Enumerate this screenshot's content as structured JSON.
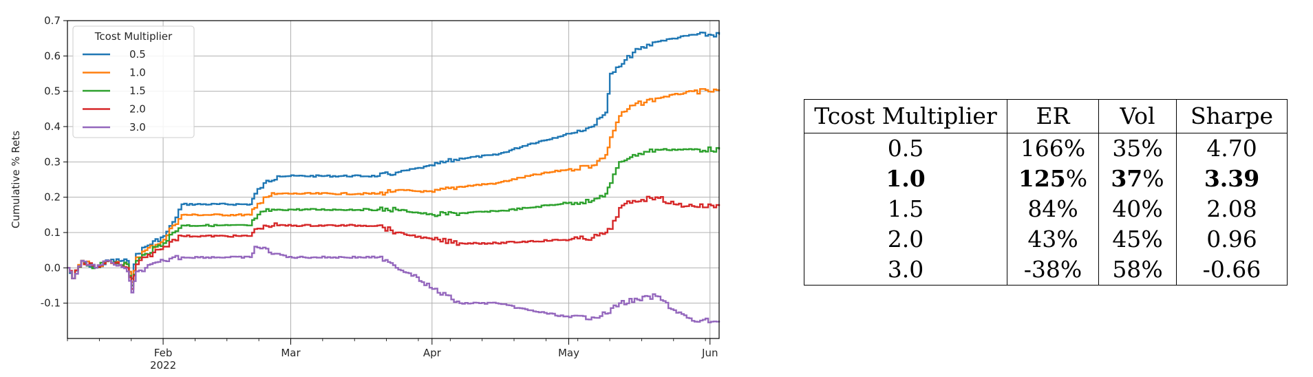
{
  "chart_data": {
    "type": "line",
    "ylabel": "Cumulative % Rets",
    "xlabel": "",
    "x_ticks": [
      {
        "date": "2022-02-01",
        "label": "Feb",
        "sublabel": "2022"
      },
      {
        "date": "2022-03-01",
        "label": "Mar",
        "sublabel": ""
      },
      {
        "date": "2022-04-01",
        "label": "Apr",
        "sublabel": ""
      },
      {
        "date": "2022-05-01",
        "label": "May",
        "sublabel": ""
      },
      {
        "date": "2022-06-01",
        "label": "Jun",
        "sublabel": ""
      }
    ],
    "xlim": [
      "2022-01-11",
      "2022-06-03"
    ],
    "ylim": [
      -0.2,
      0.7
    ],
    "y_ticks": [
      -0.1,
      0.0,
      0.1,
      0.2,
      0.3,
      0.4,
      0.5,
      0.6,
      0.7
    ],
    "grid": true,
    "legend": {
      "title": "Tcost Multiplier",
      "placement": "top-left"
    },
    "series": [
      {
        "name": "0.5",
        "color": "#1f77b4",
        "points": [
          [
            "2022-01-11",
            0.0
          ],
          [
            "2022-01-12",
            -0.03
          ],
          [
            "2022-01-14",
            0.02
          ],
          [
            "2022-01-17",
            0.0
          ],
          [
            "2022-01-20",
            0.02
          ],
          [
            "2022-01-24",
            0.02
          ],
          [
            "2022-01-25",
            -0.03
          ],
          [
            "2022-01-26",
            0.04
          ],
          [
            "2022-01-28",
            0.06
          ],
          [
            "2022-02-01",
            0.09
          ],
          [
            "2022-02-03",
            0.13
          ],
          [
            "2022-02-05",
            0.18
          ],
          [
            "2022-02-20",
            0.18
          ],
          [
            "2022-02-21",
            0.21
          ],
          [
            "2022-02-23",
            0.24
          ],
          [
            "2022-02-26",
            0.26
          ],
          [
            "2022-03-20",
            0.26
          ],
          [
            "2022-03-24",
            0.27
          ],
          [
            "2022-04-01",
            0.29
          ],
          [
            "2022-04-07",
            0.31
          ],
          [
            "2022-04-15",
            0.32
          ],
          [
            "2022-04-22",
            0.35
          ],
          [
            "2022-05-01",
            0.38
          ],
          [
            "2022-05-06",
            0.4
          ],
          [
            "2022-05-09",
            0.44
          ],
          [
            "2022-05-10",
            0.55
          ],
          [
            "2022-05-12",
            0.57
          ],
          [
            "2022-05-15",
            0.61
          ],
          [
            "2022-05-20",
            0.64
          ],
          [
            "2022-05-28",
            0.66
          ],
          [
            "2022-06-03",
            0.66
          ]
        ]
      },
      {
        "name": "1.0",
        "color": "#ff7f0e",
        "points": [
          [
            "2022-01-11",
            0.0
          ],
          [
            "2022-01-12",
            -0.03
          ],
          [
            "2022-01-14",
            0.02
          ],
          [
            "2022-01-17",
            0.0
          ],
          [
            "2022-01-20",
            0.02
          ],
          [
            "2022-01-24",
            0.01
          ],
          [
            "2022-01-25",
            -0.04
          ],
          [
            "2022-01-26",
            0.03
          ],
          [
            "2022-01-28",
            0.05
          ],
          [
            "2022-02-01",
            0.08
          ],
          [
            "2022-02-03",
            0.12
          ],
          [
            "2022-02-05",
            0.15
          ],
          [
            "2022-02-20",
            0.15
          ],
          [
            "2022-02-21",
            0.17
          ],
          [
            "2022-02-23",
            0.2
          ],
          [
            "2022-02-26",
            0.21
          ],
          [
            "2022-03-20",
            0.21
          ],
          [
            "2022-03-24",
            0.22
          ],
          [
            "2022-04-01",
            0.215
          ],
          [
            "2022-04-07",
            0.23
          ],
          [
            "2022-04-15",
            0.24
          ],
          [
            "2022-04-22",
            0.26
          ],
          [
            "2022-05-01",
            0.28
          ],
          [
            "2022-05-06",
            0.29
          ],
          [
            "2022-05-09",
            0.32
          ],
          [
            "2022-05-10",
            0.37
          ],
          [
            "2022-05-12",
            0.43
          ],
          [
            "2022-05-15",
            0.46
          ],
          [
            "2022-05-20",
            0.48
          ],
          [
            "2022-05-28",
            0.5
          ],
          [
            "2022-06-03",
            0.5
          ]
        ]
      },
      {
        "name": "1.5",
        "color": "#2ca02c",
        "points": [
          [
            "2022-01-11",
            0.0
          ],
          [
            "2022-01-12",
            -0.03
          ],
          [
            "2022-01-14",
            0.02
          ],
          [
            "2022-01-17",
            0.0
          ],
          [
            "2022-01-20",
            0.02
          ],
          [
            "2022-01-24",
            0.01
          ],
          [
            "2022-01-25",
            -0.05
          ],
          [
            "2022-01-26",
            0.02
          ],
          [
            "2022-01-28",
            0.04
          ],
          [
            "2022-02-01",
            0.07
          ],
          [
            "2022-02-03",
            0.1
          ],
          [
            "2022-02-05",
            0.12
          ],
          [
            "2022-02-20",
            0.12
          ],
          [
            "2022-02-21",
            0.14
          ],
          [
            "2022-02-23",
            0.16
          ],
          [
            "2022-02-26",
            0.165
          ],
          [
            "2022-03-20",
            0.165
          ],
          [
            "2022-03-24",
            0.165
          ],
          [
            "2022-04-01",
            0.15
          ],
          [
            "2022-04-07",
            0.155
          ],
          [
            "2022-04-15",
            0.16
          ],
          [
            "2022-04-22",
            0.17
          ],
          [
            "2022-05-01",
            0.185
          ],
          [
            "2022-05-06",
            0.19
          ],
          [
            "2022-05-09",
            0.21
          ],
          [
            "2022-05-10",
            0.24
          ],
          [
            "2022-05-12",
            0.3
          ],
          [
            "2022-05-15",
            0.32
          ],
          [
            "2022-05-20",
            0.335
          ],
          [
            "2022-05-28",
            0.335
          ],
          [
            "2022-06-03",
            0.335
          ]
        ]
      },
      {
        "name": "2.0",
        "color": "#d62728",
        "points": [
          [
            "2022-01-11",
            0.0
          ],
          [
            "2022-01-12",
            -0.03
          ],
          [
            "2022-01-14",
            0.02
          ],
          [
            "2022-01-17",
            0.0
          ],
          [
            "2022-01-20",
            0.02
          ],
          [
            "2022-01-24",
            0.0
          ],
          [
            "2022-01-25",
            -0.06
          ],
          [
            "2022-01-26",
            0.01
          ],
          [
            "2022-01-28",
            0.03
          ],
          [
            "2022-02-01",
            0.06
          ],
          [
            "2022-02-03",
            0.08
          ],
          [
            "2022-02-05",
            0.09
          ],
          [
            "2022-02-20",
            0.09
          ],
          [
            "2022-02-21",
            0.11
          ],
          [
            "2022-02-23",
            0.12
          ],
          [
            "2022-02-26",
            0.12
          ],
          [
            "2022-03-20",
            0.12
          ],
          [
            "2022-03-24",
            0.1
          ],
          [
            "2022-04-01",
            0.08
          ],
          [
            "2022-04-07",
            0.07
          ],
          [
            "2022-04-15",
            0.07
          ],
          [
            "2022-04-22",
            0.075
          ],
          [
            "2022-05-01",
            0.08
          ],
          [
            "2022-05-06",
            0.085
          ],
          [
            "2022-05-09",
            0.1
          ],
          [
            "2022-05-10",
            0.11
          ],
          [
            "2022-05-12",
            0.17
          ],
          [
            "2022-05-15",
            0.19
          ],
          [
            "2022-05-20",
            0.2
          ],
          [
            "2022-05-24",
            0.18
          ],
          [
            "2022-05-28",
            0.175
          ],
          [
            "2022-06-03",
            0.175
          ]
        ]
      },
      {
        "name": "3.0",
        "color": "#9467bd",
        "points": [
          [
            "2022-01-11",
            0.0
          ],
          [
            "2022-01-12",
            -0.03
          ],
          [
            "2022-01-14",
            0.02
          ],
          [
            "2022-01-17",
            0.0
          ],
          [
            "2022-01-20",
            0.02
          ],
          [
            "2022-01-24",
            -0.01
          ],
          [
            "2022-01-25",
            -0.07
          ],
          [
            "2022-01-26",
            -0.01
          ],
          [
            "2022-01-28",
            0.0
          ],
          [
            "2022-02-01",
            0.02
          ],
          [
            "2022-02-03",
            0.03
          ],
          [
            "2022-02-05",
            0.03
          ],
          [
            "2022-02-20",
            0.03
          ],
          [
            "2022-02-21",
            0.06
          ],
          [
            "2022-02-26",
            0.04
          ],
          [
            "2022-02-28",
            0.03
          ],
          [
            "2022-03-20",
            0.03
          ],
          [
            "2022-03-24",
            0.0
          ],
          [
            "2022-03-28",
            -0.02
          ],
          [
            "2022-04-01",
            -0.06
          ],
          [
            "2022-04-07",
            -0.1
          ],
          [
            "2022-04-15",
            -0.1
          ],
          [
            "2022-04-22",
            -0.12
          ],
          [
            "2022-05-01",
            -0.14
          ],
          [
            "2022-05-06",
            -0.14
          ],
          [
            "2022-05-09",
            -0.13
          ],
          [
            "2022-05-12",
            -0.1
          ],
          [
            "2022-05-16",
            -0.09
          ],
          [
            "2022-05-20",
            -0.08
          ],
          [
            "2022-05-24",
            -0.12
          ],
          [
            "2022-05-28",
            -0.15
          ],
          [
            "2022-06-03",
            -0.15
          ]
        ]
      }
    ]
  },
  "table": {
    "headers": [
      "Tcost Multiplier",
      "ER",
      "Vol",
      "Sharpe"
    ],
    "rows": [
      {
        "multiplier": "0.5",
        "er": "166",
        "vol": "35",
        "sharpe": "4.70",
        "bold": false
      },
      {
        "multiplier": "1.0",
        "er": "125",
        "vol": "37",
        "sharpe": "3.39",
        "bold": true
      },
      {
        "multiplier": "1.5",
        "er": "84",
        "vol": "40",
        "sharpe": "2.08",
        "bold": false
      },
      {
        "multiplier": "2.0",
        "er": "43",
        "vol": "45",
        "sharpe": "0.96",
        "bold": false
      },
      {
        "multiplier": "3.0",
        "er": "-38",
        "vol": "58",
        "sharpe": "-0.66",
        "bold": false
      }
    ],
    "percent_sign": "%"
  }
}
